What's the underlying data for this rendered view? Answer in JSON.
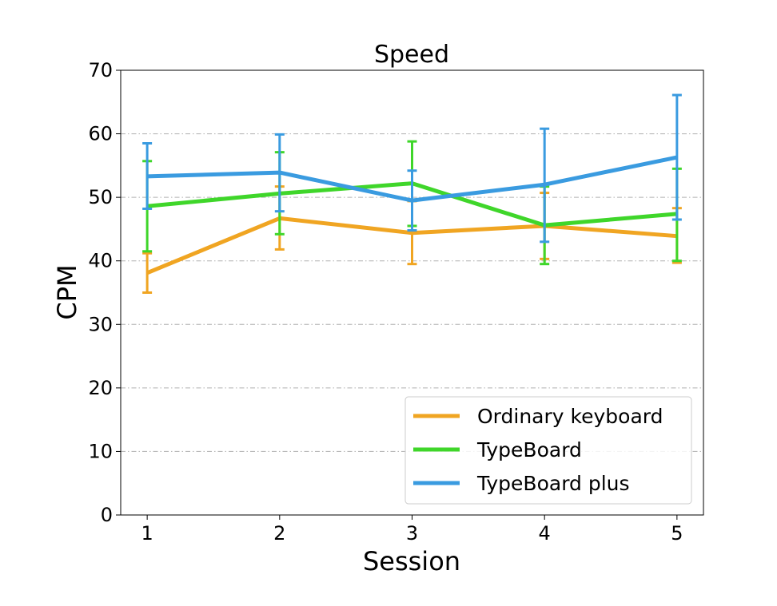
{
  "chart_data": {
    "type": "line",
    "title": "Speed",
    "xlabel": "Session",
    "ylabel": "CPM",
    "x": [
      1,
      2,
      3,
      4,
      5
    ],
    "xlim": [
      0.8,
      5.2
    ],
    "ylim": [
      0,
      70
    ],
    "yticks": [
      0,
      10,
      20,
      30,
      40,
      50,
      60,
      70
    ],
    "xticks": [
      1,
      2,
      3,
      4,
      5
    ],
    "grid": "horizontal dash-dot",
    "legend_position": "lower-right",
    "series": [
      {
        "name": "Ordinary keyboard",
        "color": "#f0a522",
        "values": [
          38.1,
          46.7,
          44.4,
          45.5,
          43.9
        ],
        "error_low": [
          35.0,
          41.8,
          39.5,
          40.3,
          39.7
        ],
        "error_high": [
          41.2,
          51.7,
          49.4,
          50.7,
          48.3
        ]
      },
      {
        "name": "TypeBoard",
        "color": "#3fd62a",
        "values": [
          48.6,
          50.6,
          52.2,
          45.6,
          47.4
        ],
        "error_low": [
          41.5,
          44.2,
          45.5,
          39.5,
          40.0
        ],
        "error_high": [
          55.7,
          57.1,
          58.8,
          51.7,
          54.5
        ]
      },
      {
        "name": "TypeBoard plus",
        "color": "#3a9be0",
        "values": [
          53.3,
          53.9,
          49.5,
          52.0,
          56.3
        ],
        "error_low": [
          48.2,
          47.8,
          44.8,
          43.0,
          46.5
        ],
        "error_high": [
          58.5,
          59.9,
          54.2,
          60.8,
          66.1
        ]
      }
    ]
  }
}
